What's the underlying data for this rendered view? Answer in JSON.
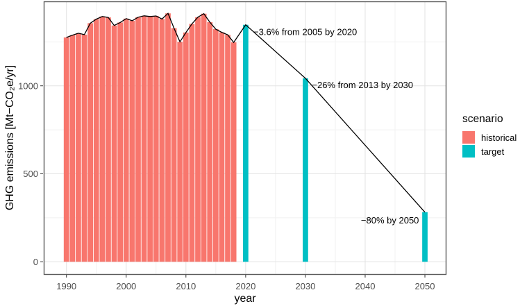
{
  "chart_data": {
    "type": "bar",
    "title": "",
    "xlabel": "year",
    "ylabel": "GHG emissions [Mt−CO₂e/yr]",
    "xlim": [
      1986.2,
      2053.6
    ],
    "ylim": [
      -70,
      1480
    ],
    "x_ticks": [
      1990,
      2000,
      2010,
      2020,
      2030,
      2040,
      2050
    ],
    "x_minor_ticks": [
      1995,
      2005,
      2015,
      2025,
      2035,
      2045
    ],
    "y_ticks": [
      0,
      500,
      1000
    ],
    "y_minor_ticks": [
      250,
      750,
      1250
    ],
    "grid": "major+minor",
    "bar_width_years": 0.9,
    "series": [
      {
        "name": "historical",
        "color": "#F8766D",
        "x": [
          1990,
          1991,
          1992,
          1993,
          1994,
          1995,
          1996,
          1997,
          1998,
          1999,
          2000,
          2001,
          2002,
          2003,
          2004,
          2005,
          2006,
          2007,
          2008,
          2009,
          2010,
          2011,
          2012,
          2013,
          2014,
          2015,
          2016,
          2017,
          2018
        ],
        "values": [
          1275,
          1288,
          1299,
          1291,
          1356,
          1379,
          1394,
          1389,
          1343,
          1360,
          1382,
          1370,
          1390,
          1398,
          1394,
          1397,
          1380,
          1412,
          1328,
          1250,
          1303,
          1352,
          1390,
          1410,
          1362,
          1322,
          1304,
          1290,
          1247
        ]
      },
      {
        "name": "target",
        "color": "#00BFC4",
        "x": [
          2020,
          2030,
          2050
        ],
        "values": [
          1347,
          1043,
          282
        ]
      }
    ],
    "line": {
      "color": "#000000",
      "width": 1.3,
      "description": "connects tops of all bars in year order"
    },
    "annotations": [
      {
        "text": "−3.6% from 2005 by 2020",
        "x": 2021.3,
        "y": 1308,
        "align": "left"
      },
      {
        "text": "−26% from 2013 by 2030",
        "x": 2031.1,
        "y": 1005,
        "align": "left"
      },
      {
        "text": "−80% by 2050",
        "x": 2049.0,
        "y": 236,
        "align": "right"
      }
    ],
    "legend": {
      "title": "scenario",
      "position": "right",
      "items": [
        {
          "label": "historical",
          "color": "#F8766D"
        },
        {
          "label": "target",
          "color": "#00BFC4"
        }
      ]
    },
    "colors": {
      "grid_major": "#E2E2E2",
      "grid_minor": "#F1F1F1",
      "panel_border": "#595959",
      "tick": "#333333",
      "tick_label": "#4D4D4D",
      "axis_title": "#000000",
      "background": "#FFFFFF"
    }
  }
}
